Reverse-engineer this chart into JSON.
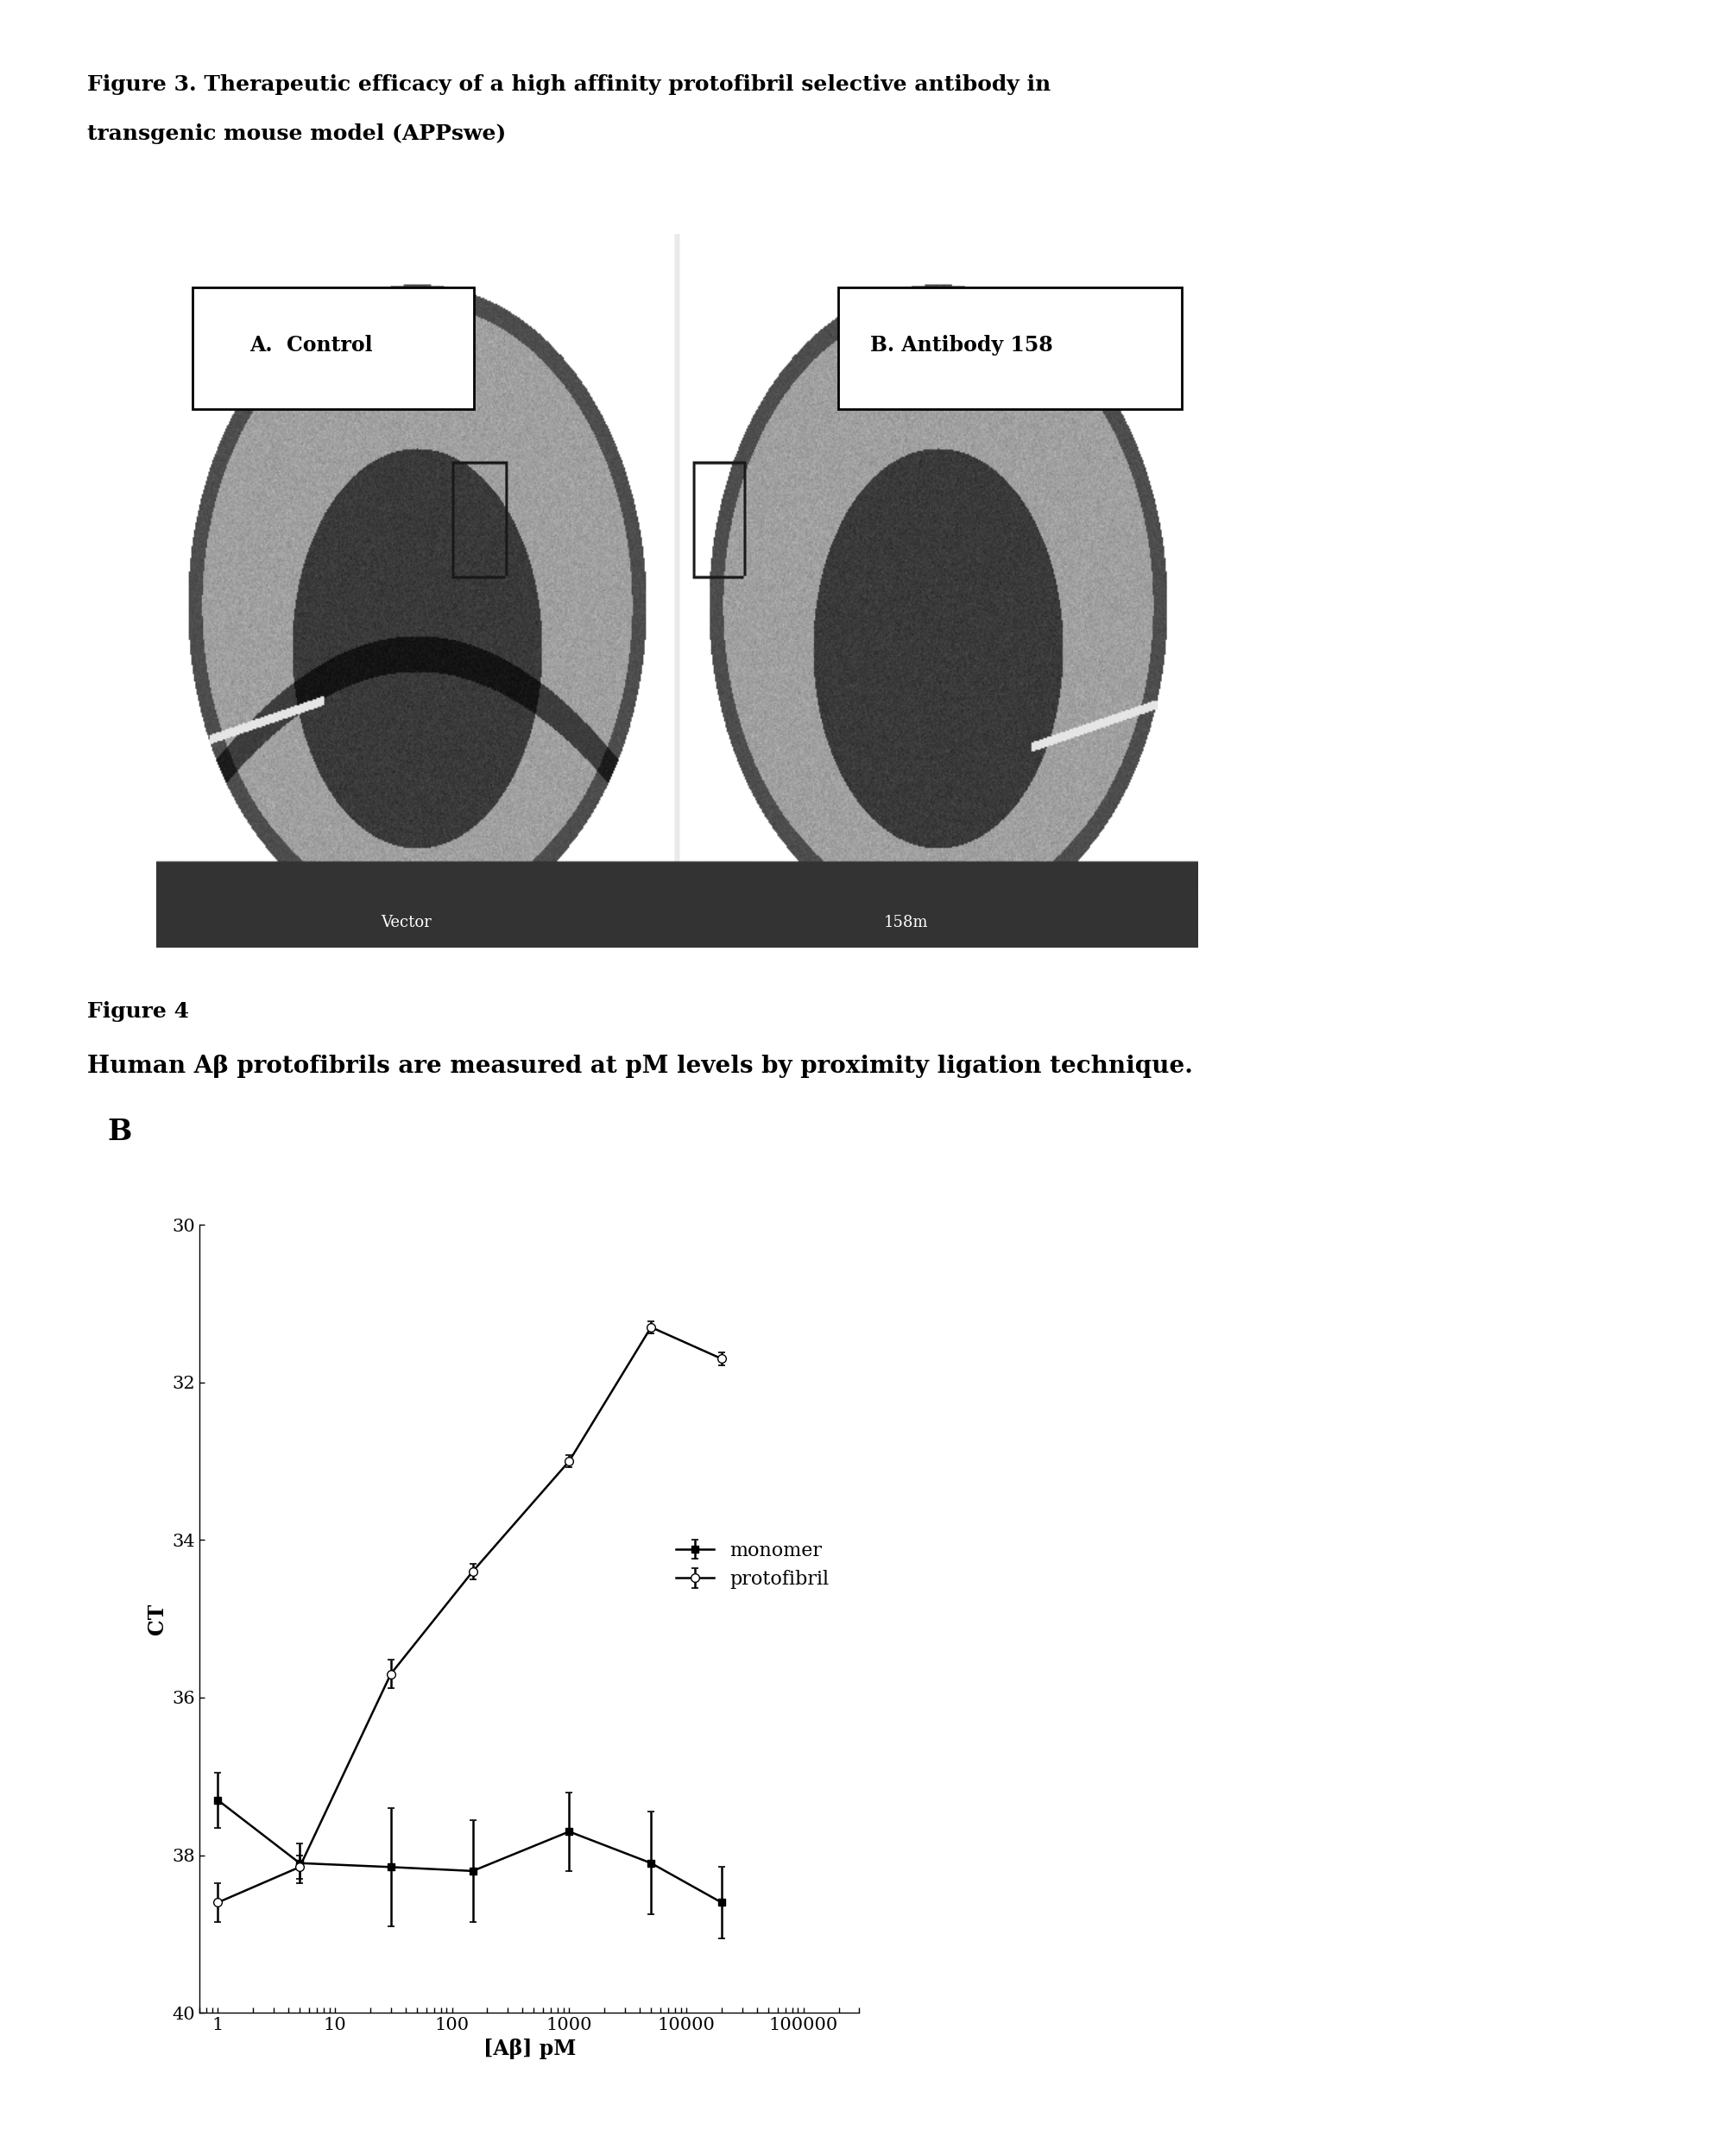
{
  "fig3_title_line1": "Figure 3. Therapeutic efficacy of a high affinity protofibril selective antibody in",
  "fig3_title_line2": "transgenic mouse model (APPswe)",
  "fig4_title_line1": "Figure 4",
  "fig4_title_line2": "Human Aβ protofibrils are measured at pM levels by proximity ligation technique.",
  "panel_label": "B",
  "xlabel": "[Aβ] pM",
  "ylabel": "CT",
  "ylim_top": 30,
  "ylim_bottom": 40,
  "yticks": [
    30,
    32,
    34,
    36,
    38,
    40
  ],
  "xticks": [
    1,
    10,
    100,
    1000,
    10000,
    100000
  ],
  "xticklabels": [
    "1",
    "10",
    "100",
    "1000",
    "10000",
    "100000"
  ],
  "monomer_x": [
    1,
    5,
    30,
    150,
    1000,
    5000,
    20000
  ],
  "monomer_y": [
    37.3,
    38.1,
    38.15,
    38.2,
    37.7,
    38.1,
    38.6
  ],
  "monomer_yerr": [
    0.35,
    0.25,
    0.75,
    0.65,
    0.5,
    0.65,
    0.45
  ],
  "protofibril_x": [
    1,
    5,
    30,
    150,
    1000,
    5000,
    20000
  ],
  "protofibril_y": [
    38.6,
    38.15,
    35.7,
    34.4,
    33.0,
    31.3,
    31.7
  ],
  "protofibril_yerr": [
    0.25,
    0.15,
    0.18,
    0.1,
    0.08,
    0.08,
    0.08
  ],
  "background_color": "#ffffff",
  "text_color": "#000000",
  "fig3_title_fontsize": 18,
  "fig4_title1_fontsize": 18,
  "fig4_title2_fontsize": 20,
  "axis_label_fontsize": 17,
  "tick_fontsize": 15,
  "legend_fontsize": 16,
  "panel_label_fontsize": 24,
  "brain_label_fontsize": 17,
  "brain_small_text_fontsize": 13
}
